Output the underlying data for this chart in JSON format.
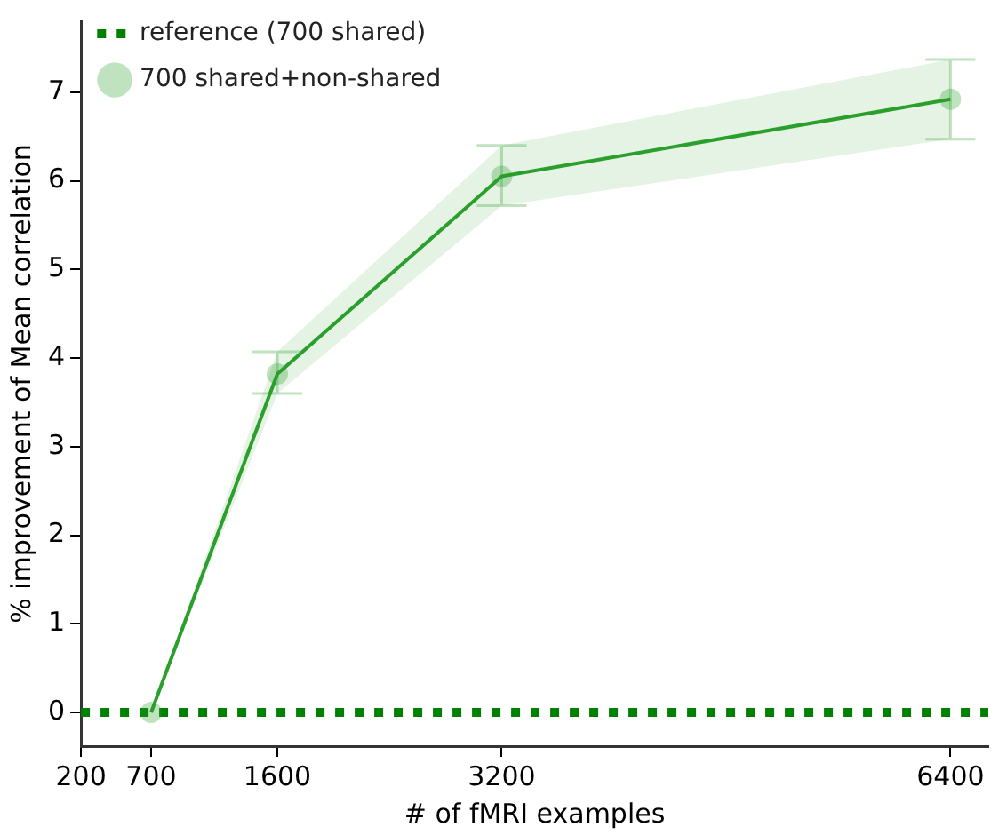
{
  "chart_data": {
    "type": "line",
    "xlabel": "# of fMRI examples",
    "ylabel": "% improvement of Mean correlation",
    "x": [
      700,
      1600,
      3200,
      6400
    ],
    "series": [
      {
        "name": "700 shared+non-shared",
        "color": "#2ca02c",
        "values": [
          0,
          3.82,
          6.05,
          6.92
        ],
        "errors": [
          null,
          [
            3.6,
            4.07
          ],
          [
            5.72,
            6.4
          ],
          [
            6.47,
            7.37
          ]
        ],
        "lower": [
          0,
          3.6,
          5.72,
          6.47
        ],
        "upper": [
          0,
          4.07,
          6.4,
          7.37
        ]
      }
    ],
    "ref_lines": [
      {
        "axis": "y",
        "value": 0,
        "label": "reference (700 shared)",
        "color": "#008000",
        "line_style": "dotted"
      }
    ],
    "xlim": [
      200,
      6670
    ],
    "xticks": [
      200,
      700,
      1600,
      3200,
      6400
    ],
    "ylim": [
      -0.38,
      7.8
    ],
    "yticks": [
      0,
      1,
      2,
      3,
      4,
      5,
      6,
      7
    ],
    "grid": false,
    "legend": "top left",
    "marker": "circle",
    "line_style": "solid"
  }
}
